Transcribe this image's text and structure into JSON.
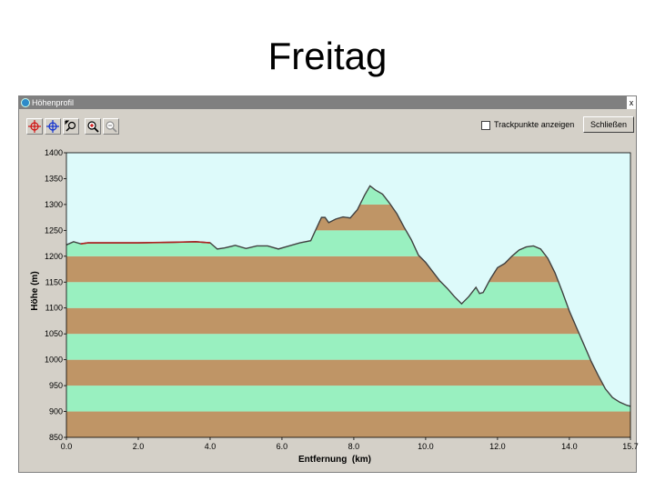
{
  "slide": {
    "title": "Freitag"
  },
  "window": {
    "title": "Höhenprofil",
    "close_glyph": "x",
    "track_label": "Trackpunkte anzeigen",
    "track_checked": false,
    "close_button": "Schließen"
  },
  "toolbar": {
    "icons": [
      "crosshair-red-icon",
      "crosshair-blue-icon",
      "magnify-cursor-icon",
      "zoom-in-icon",
      "zoom-out-icon"
    ]
  },
  "colors": {
    "plot_bg": "#ddfafa",
    "band_green": "#99f0c0",
    "band_brown": "#bf9566",
    "profile_line": "#404040",
    "highlight_line": "#b02020"
  },
  "chart_data": {
    "type": "area",
    "xlabel": "Entfernung  (km)",
    "ylabel": "Höhe (m)",
    "xlim": [
      0,
      15.7
    ],
    "ylim": [
      850,
      1400
    ],
    "xticks": [
      "0.0",
      "2.0",
      "4.0",
      "6.0",
      "8.0",
      "10.0",
      "12.0",
      "14.0",
      "15.7"
    ],
    "xtick_values": [
      0,
      2,
      4,
      6,
      8,
      10,
      12,
      14,
      15.7
    ],
    "yticks": [
      850,
      900,
      950,
      1000,
      1050,
      1100,
      1150,
      1200,
      1250,
      1300,
      1350,
      1400
    ],
    "band_step": 50,
    "highlight_range_km": [
      0.4,
      4.0
    ],
    "series": [
      {
        "x": [
          0,
          0.2,
          0.4,
          0.6,
          1.0,
          2.0,
          3.0,
          3.6,
          4.0,
          4.2,
          4.4,
          4.7,
          5.0,
          5.3,
          5.6,
          5.9,
          6.2,
          6.5,
          6.8,
          7.1,
          7.2,
          7.3,
          7.5,
          7.7,
          7.9,
          8.1,
          8.3,
          8.45,
          8.6,
          8.8,
          9.0,
          9.2,
          9.4,
          9.6,
          9.8,
          10.0,
          10.2,
          10.4,
          10.6,
          10.8,
          11.0,
          11.2,
          11.4,
          11.5,
          11.6,
          11.8,
          12.0,
          12.2,
          12.4,
          12.6,
          12.8,
          13.0,
          13.2,
          13.4,
          13.6,
          13.8,
          14.0,
          14.2,
          14.4,
          14.6,
          14.8,
          15.0,
          15.2,
          15.4,
          15.6,
          15.7
        ],
        "y": [
          1222,
          1228,
          1224,
          1226,
          1226,
          1226,
          1227,
          1228,
          1226,
          1214,
          1216,
          1221,
          1215,
          1220,
          1220,
          1214,
          1220,
          1226,
          1230,
          1275,
          1275,
          1265,
          1272,
          1276,
          1274,
          1290,
          1318,
          1336,
          1328,
          1320,
          1302,
          1282,
          1256,
          1232,
          1202,
          1188,
          1170,
          1152,
          1138,
          1122,
          1108,
          1122,
          1140,
          1128,
          1130,
          1156,
          1178,
          1186,
          1200,
          1212,
          1218,
          1220,
          1214,
          1196,
          1168,
          1132,
          1094,
          1062,
          1030,
          998,
          970,
          944,
          927,
          918,
          912,
          910
        ]
      }
    ]
  }
}
